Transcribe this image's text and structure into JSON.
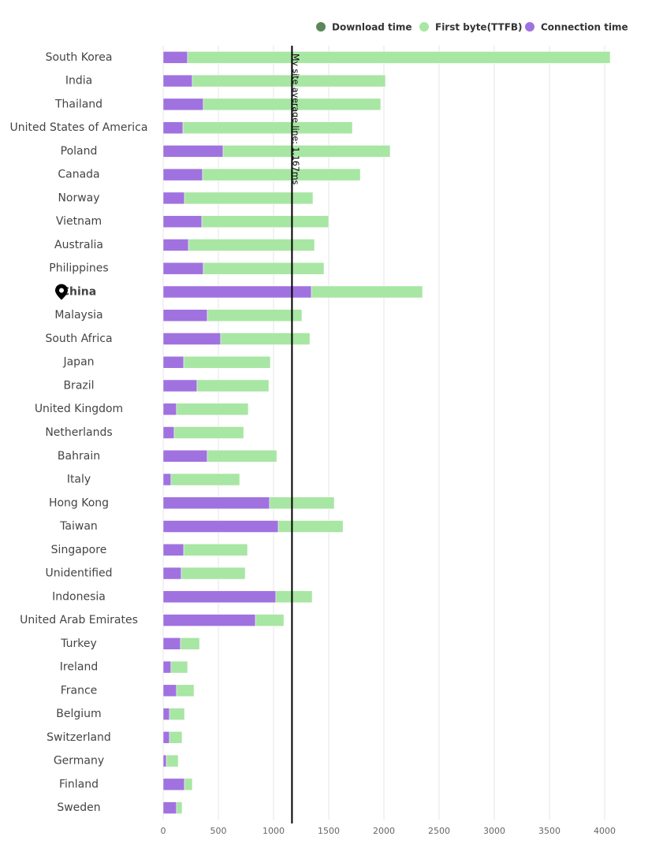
{
  "chart_data": {
    "type": "stacked-barh",
    "categories": [
      "South Korea",
      "India",
      "Thailand",
      "United States of America",
      "Poland",
      "Canada",
      "Norway",
      "Vietnam",
      "Australia",
      "Philippines",
      "China",
      "Malaysia",
      "South Africa",
      "Japan",
      "Brazil",
      "United Kingdom",
      "Netherlands",
      "Bahrain",
      "Italy",
      "Hong Kong",
      "Taiwan",
      "Singapore",
      "Unidentified",
      "Indonesia",
      "United Arab Emirates",
      "Turkey",
      "Ireland",
      "France",
      "Belgium",
      "Switzerland",
      "Germany",
      "Finland",
      "Sweden"
    ],
    "highlight": "China",
    "series": [
      {
        "name": "Download time",
        "color": "#5b875b",
        "values": [
          0,
          0,
          0,
          0,
          0,
          0,
          0,
          0,
          0,
          0,
          0,
          0,
          0,
          0,
          0,
          0,
          0,
          0,
          0,
          0,
          0,
          0,
          0,
          0,
          0,
          0,
          0,
          0,
          0,
          0,
          0,
          0,
          0
        ]
      },
      {
        "name": "First byte(TTFB)",
        "color": "#a8e6a3",
        "values": [
          3829,
          1750,
          1607,
          1535,
          1514,
          1429,
          1164,
          1150,
          1142,
          1093,
          1007,
          857,
          808,
          785,
          650,
          650,
          629,
          629,
          622,
          586,
          586,
          578,
          579,
          329,
          257,
          172,
          150,
          158,
          136,
          114,
          107,
          71,
          50
        ]
      },
      {
        "name": "Connection time",
        "color": "#a072e0",
        "values": [
          221,
          264,
          364,
          179,
          543,
          357,
          193,
          350,
          229,
          364,
          1343,
          400,
          521,
          186,
          307,
          121,
          100,
          400,
          71,
          964,
          1043,
          186,
          164,
          1021,
          836,
          157,
          71,
          121,
          57,
          57,
          29,
          193,
          121
        ]
      }
    ],
    "xlim": [
      0,
      4000
    ],
    "xticks": [
      0,
      500,
      1000,
      1500,
      2000,
      2500,
      3000,
      3500,
      4000
    ],
    "grid": true,
    "annotation": {
      "value": 1167,
      "text": "My site average line: 1,167ms"
    }
  }
}
